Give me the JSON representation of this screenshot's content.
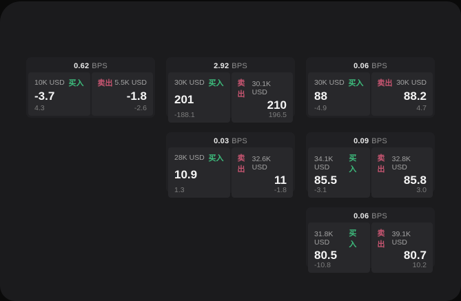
{
  "labels": {
    "buy": "买入",
    "sell": "卖出",
    "bps_suffix": "BPS"
  },
  "colors": {
    "background": "#0a0a0a",
    "panel": "#1b1b1d",
    "card": "#202023",
    "side_panel": "#28282b",
    "buy_green": "#3dbd7d",
    "sell_red": "#c75571",
    "value_white": "#f5f5f5",
    "muted_gray": "#7d7d7d"
  },
  "cards": [
    {
      "bps": "0.62",
      "buy": {
        "amount": "10K USD",
        "value": "-3.7",
        "delta": "4.3"
      },
      "sell": {
        "amount": "5.5K USD",
        "value": "-1.8",
        "delta": "-2.6"
      }
    },
    {
      "bps": "2.92",
      "buy": {
        "amount": "30K USD",
        "value": "201",
        "delta": "-188.1"
      },
      "sell": {
        "amount": "30.1K USD",
        "value": "210",
        "delta": "196.5"
      }
    },
    {
      "bps": "0.06",
      "buy": {
        "amount": "30K USD",
        "value": "88",
        "delta": "-4.9"
      },
      "sell": {
        "amount": "30K USD",
        "value": "88.2",
        "delta": "4.7"
      }
    },
    {
      "bps": "0.03",
      "buy": {
        "amount": "28K USD",
        "value": "10.9",
        "delta": "1.3"
      },
      "sell": {
        "amount": "32.6K USD",
        "value": "11",
        "delta": "-1.8"
      }
    },
    {
      "bps": "0.09",
      "buy": {
        "amount": "34.1K USD",
        "value": "85.5",
        "delta": "-3.1"
      },
      "sell": {
        "amount": "32.8K USD",
        "value": "85.8",
        "delta": "3.0"
      }
    },
    {
      "bps": "0.06",
      "buy": {
        "amount": "31.8K USD",
        "value": "80.5",
        "delta": "-10.8"
      },
      "sell": {
        "amount": "39.1K USD",
        "value": "80.7",
        "delta": "10.2"
      }
    }
  ]
}
